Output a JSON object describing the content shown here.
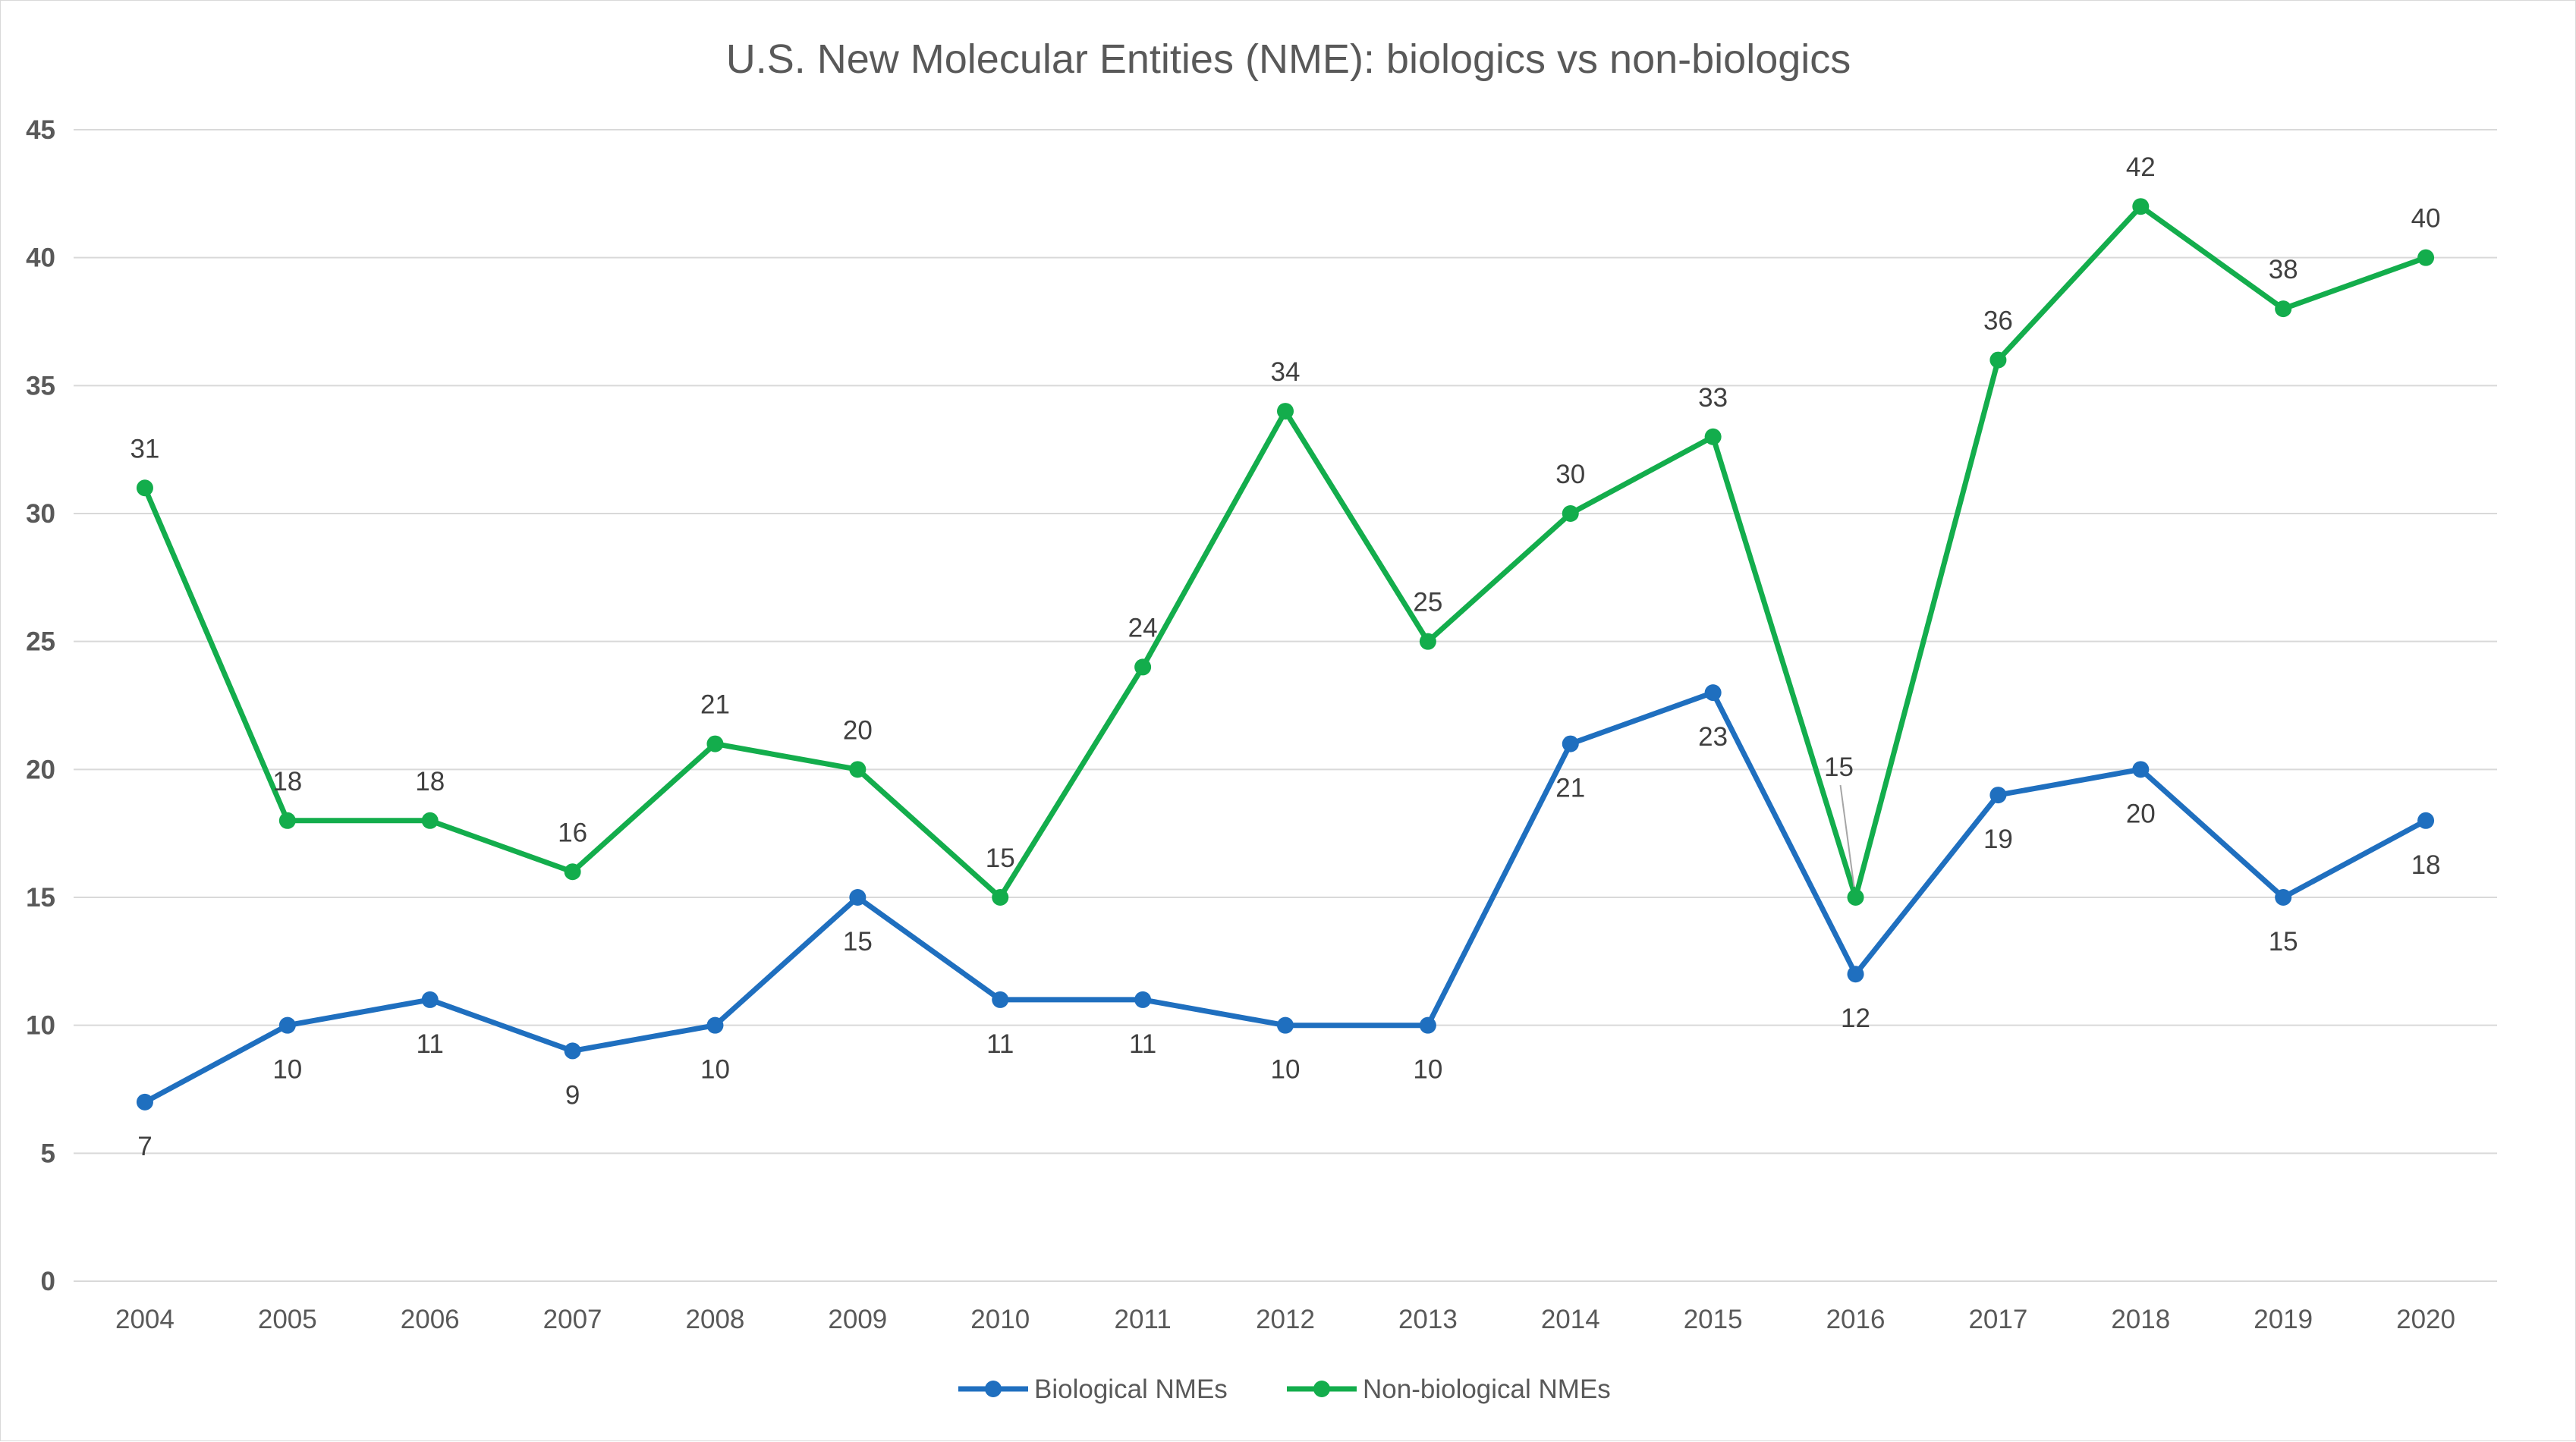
{
  "chart_data": {
    "type": "line",
    "title": "U.S. New Molecular Entities (NME): biologics vs non-biologics",
    "xlabel": "",
    "ylabel": "",
    "ylim": [
      0,
      45
    ],
    "yticks": [
      "0",
      "5",
      "10",
      "15",
      "20",
      "25",
      "30",
      "35",
      "40",
      "45"
    ],
    "grid": true,
    "legend_position": "bottom",
    "categories": [
      "2004",
      "2005",
      "2006",
      "2007",
      "2008",
      "2009",
      "2010",
      "2011",
      "2012",
      "2013",
      "2014",
      "2015",
      "2016",
      "2017",
      "2018",
      "2019",
      "2020"
    ],
    "series": [
      {
        "name": "Biological NMEs",
        "color": "#1F6FBF",
        "label_position": "below",
        "values": [
          7,
          10,
          11,
          9,
          10,
          15,
          11,
          11,
          10,
          10,
          21,
          23,
          12,
          19,
          20,
          15,
          18
        ]
      },
      {
        "name": "Non-biological NMEs",
        "color": "#13AD4C",
        "label_position": "above",
        "values": [
          31,
          18,
          18,
          16,
          21,
          20,
          15,
          24,
          34,
          25,
          30,
          33,
          15,
          36,
          42,
          38,
          40
        ]
      }
    ]
  }
}
